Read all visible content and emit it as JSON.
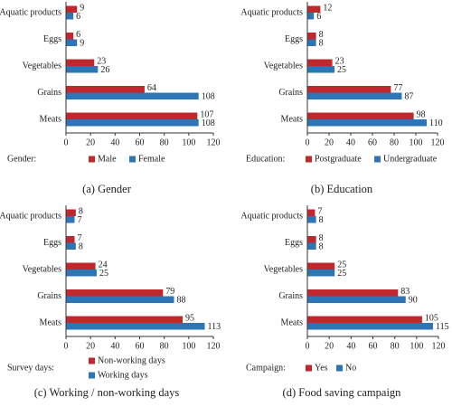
{
  "chart_data": [
    {
      "type": "bar",
      "orientation": "horizontal",
      "legend_title": "Gender:",
      "caption": "(a) Gender",
      "categories": [
        "Aquatic products",
        "Eggs",
        "Vegetables",
        "Grains",
        "Meats"
      ],
      "series": [
        {
          "name": "Male",
          "color": "#c0282d",
          "values": [
            9,
            6,
            23,
            64,
            107
          ]
        },
        {
          "name": "Female",
          "color": "#2e75b6",
          "values": [
            6,
            9,
            26,
            108,
            108
          ]
        }
      ],
      "xlim": [
        0,
        120
      ],
      "xticks": [
        0,
        20,
        40,
        60,
        80,
        100,
        120
      ]
    },
    {
      "type": "bar",
      "orientation": "horizontal",
      "legend_title": "Education:",
      "caption": "(b) Education",
      "categories": [
        "Aquatic products",
        "Eggs",
        "Vegetables",
        "Grains",
        "Meats"
      ],
      "series": [
        {
          "name": "Postgraduate",
          "color": "#c0282d",
          "values": [
            12,
            8,
            23,
            77,
            98
          ]
        },
        {
          "name": "Undergraduate",
          "color": "#2e75b6",
          "values": [
            6,
            8,
            25,
            87,
            110
          ]
        }
      ],
      "xlim": [
        0,
        120
      ],
      "xticks": [
        0,
        20,
        40,
        60,
        80,
        100,
        120
      ]
    },
    {
      "type": "bar",
      "orientation": "horizontal",
      "legend_title": "Survey days:",
      "caption": "(c) Working / non-working days",
      "categories": [
        "Aquatic products",
        "Eggs",
        "Vegetables",
        "Grains",
        "Meats"
      ],
      "series": [
        {
          "name": "Non-working days",
          "color": "#c0282d",
          "values": [
            8,
            7,
            24,
            79,
            95
          ]
        },
        {
          "name": "Working days",
          "color": "#2e75b6",
          "values": [
            7,
            8,
            25,
            88,
            113
          ]
        }
      ],
      "xlim": [
        0,
        120
      ],
      "xticks": [
        0,
        20,
        40,
        60,
        80,
        100,
        120
      ]
    },
    {
      "type": "bar",
      "orientation": "horizontal",
      "legend_title": "Campaign:",
      "caption": "(d) Food saving campaign",
      "categories": [
        "Aquatic products",
        "Eggs",
        "Vegetables",
        "Grains",
        "Meats"
      ],
      "series": [
        {
          "name": "Yes",
          "color": "#c0282d",
          "values": [
            7,
            8,
            25,
            83,
            105
          ]
        },
        {
          "name": "No",
          "color": "#2e75b6",
          "values": [
            8,
            8,
            25,
            90,
            115
          ]
        }
      ],
      "xlim": [
        0,
        120
      ],
      "xticks": [
        0,
        20,
        40,
        60,
        80,
        100,
        120
      ]
    }
  ]
}
